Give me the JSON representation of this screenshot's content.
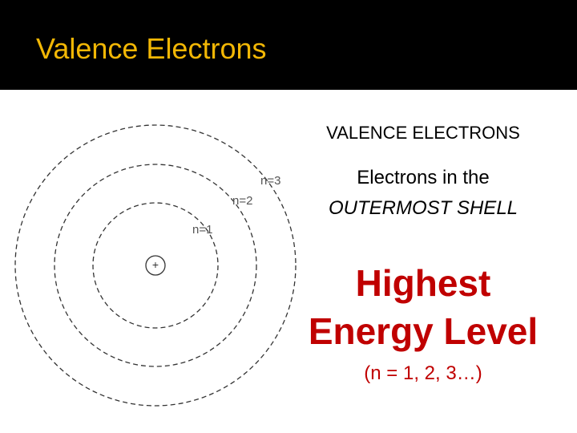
{
  "header": {
    "title": "Valence Electrons"
  },
  "diagram": {
    "nucleus": "+",
    "shells": [
      "n=1",
      "n=2",
      "n=3"
    ]
  },
  "content": {
    "heading": "VALENCE ELECTRONS",
    "line1": "Electrons in the",
    "line2": "OUTERMOST SHELL",
    "emphasis1": "Highest",
    "emphasis2": "Energy Level",
    "note": "(n = 1, 2, 3…)"
  }
}
